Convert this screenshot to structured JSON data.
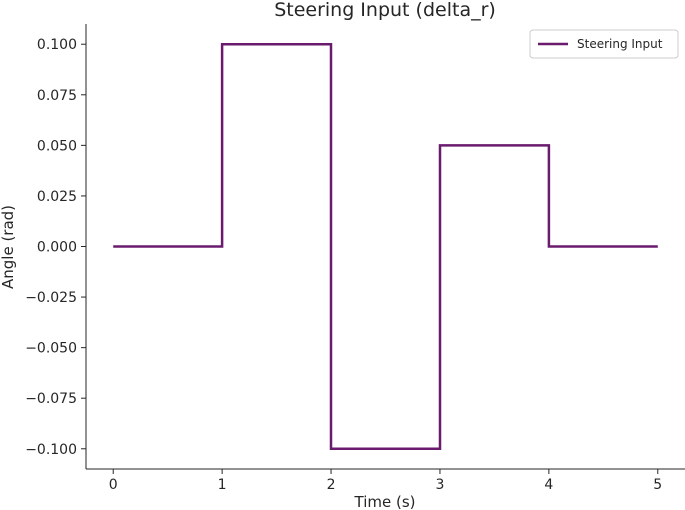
{
  "chart_data": {
    "type": "line",
    "title": "Steering Input (delta_r)",
    "xlabel": "Time (s)",
    "ylabel": "Angle (rad)",
    "xlim": [
      -0.25,
      5.25
    ],
    "ylim": [
      -0.11,
      0.11
    ],
    "x_ticks": [
      0,
      1,
      2,
      3,
      4,
      5
    ],
    "x_tick_labels": [
      "0",
      "1",
      "2",
      "3",
      "4",
      "5"
    ],
    "y_ticks": [
      0.1,
      0.075,
      0.05,
      0.025,
      0,
      -0.025,
      -0.05,
      -0.075,
      -0.1
    ],
    "y_tick_labels": [
      "0.100",
      "0.075",
      "0.050",
      "0.025",
      "0.000",
      "−0.025",
      "−0.050",
      "−0.075",
      "−0.100"
    ],
    "grid": false,
    "legend_position": "top-right",
    "series": [
      {
        "name": "Steering Input",
        "color": "#6a1b6e",
        "x": [
          0,
          1,
          1,
          2,
          2,
          3,
          3,
          4,
          4,
          5
        ],
        "y": [
          0,
          0,
          0.1,
          0.1,
          -0.1,
          -0.1,
          0.05,
          0.05,
          0,
          0
        ]
      }
    ]
  }
}
